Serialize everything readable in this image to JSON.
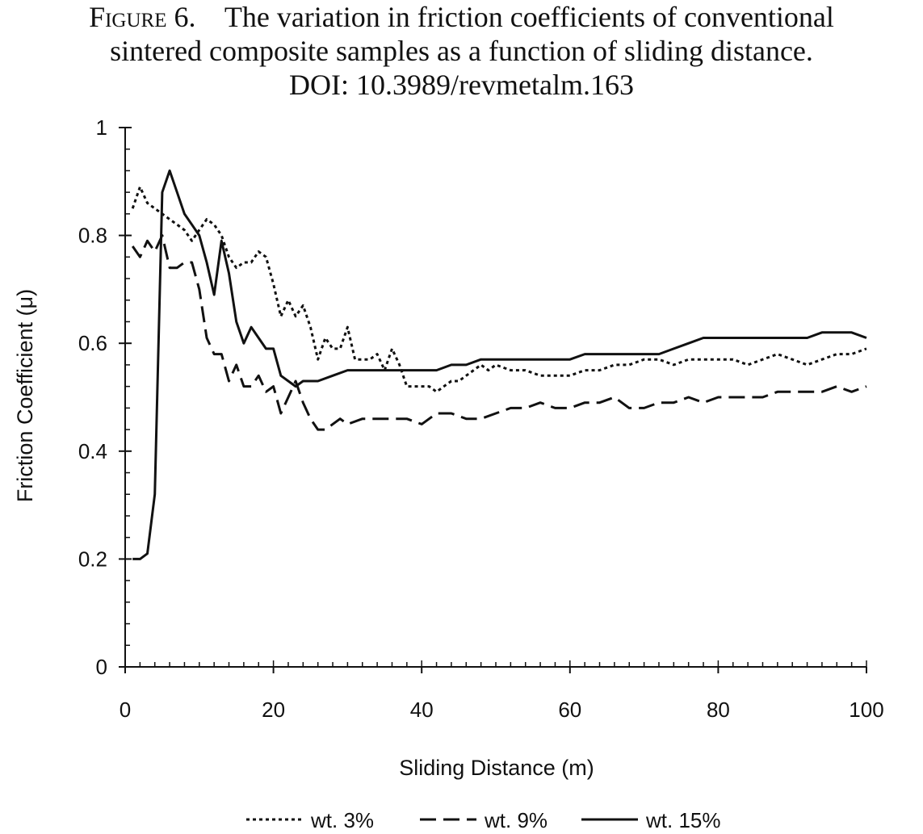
{
  "caption": {
    "figure_label": "Figure 6.",
    "line1": "The variation in friction coefficients of conventional",
    "line2": "sintered composite samples as a function of sliding distance.",
    "line3": "DOI: 10.3989/revmetalm.163"
  },
  "chart_data": {
    "type": "line",
    "title": "",
    "xlabel": "Sliding Distance (m)",
    "ylabel": "Friction Coefficient (μ)",
    "xlim": [
      0,
      100
    ],
    "ylim": [
      0,
      1
    ],
    "xticks": [
      0,
      20,
      40,
      60,
      80,
      100
    ],
    "yticks": [
      0,
      0.2,
      0.4,
      0.6,
      0.8,
      1
    ],
    "ytick_labels": [
      "0",
      "0.2",
      "0.4",
      "0.6",
      "0.8",
      "1"
    ],
    "x_minor_step": 2,
    "y_minor_step": 0.04,
    "grid": false,
    "legend_position": "bottom",
    "line_color": "#111111",
    "series": [
      {
        "name": "wt. 3%",
        "style": "dotted",
        "points": [
          [
            1,
            0.85
          ],
          [
            2,
            0.89
          ],
          [
            3,
            0.86
          ],
          [
            4,
            0.85
          ],
          [
            5,
            0.84
          ],
          [
            6,
            0.83
          ],
          [
            7,
            0.82
          ],
          [
            8,
            0.81
          ],
          [
            9,
            0.79
          ],
          [
            10,
            0.81
          ],
          [
            11,
            0.83
          ],
          [
            12,
            0.82
          ],
          [
            13,
            0.8
          ],
          [
            14,
            0.76
          ],
          [
            15,
            0.74
          ],
          [
            16,
            0.75
          ],
          [
            17,
            0.75
          ],
          [
            18,
            0.77
          ],
          [
            19,
            0.76
          ],
          [
            20,
            0.71
          ],
          [
            21,
            0.65
          ],
          [
            22,
            0.68
          ],
          [
            23,
            0.65
          ],
          [
            24,
            0.67
          ],
          [
            25,
            0.63
          ],
          [
            26,
            0.57
          ],
          [
            27,
            0.61
          ],
          [
            28,
            0.59
          ],
          [
            29,
            0.59
          ],
          [
            30,
            0.63
          ],
          [
            31,
            0.57
          ],
          [
            32,
            0.57
          ],
          [
            33,
            0.57
          ],
          [
            34,
            0.58
          ],
          [
            35,
            0.55
          ],
          [
            36,
            0.59
          ],
          [
            37,
            0.56
          ],
          [
            38,
            0.52
          ],
          [
            39,
            0.52
          ],
          [
            40,
            0.52
          ],
          [
            41,
            0.52
          ],
          [
            42,
            0.51
          ],
          [
            43,
            0.52
          ],
          [
            44,
            0.53
          ],
          [
            45,
            0.53
          ],
          [
            46,
            0.54
          ],
          [
            47,
            0.55
          ],
          [
            48,
            0.56
          ],
          [
            49,
            0.55
          ],
          [
            50,
            0.56
          ],
          [
            52,
            0.55
          ],
          [
            54,
            0.55
          ],
          [
            56,
            0.54
          ],
          [
            58,
            0.54
          ],
          [
            60,
            0.54
          ],
          [
            62,
            0.55
          ],
          [
            64,
            0.55
          ],
          [
            66,
            0.56
          ],
          [
            68,
            0.56
          ],
          [
            70,
            0.57
          ],
          [
            72,
            0.57
          ],
          [
            74,
            0.56
          ],
          [
            76,
            0.57
          ],
          [
            78,
            0.57
          ],
          [
            80,
            0.57
          ],
          [
            82,
            0.57
          ],
          [
            84,
            0.56
          ],
          [
            86,
            0.57
          ],
          [
            88,
            0.58
          ],
          [
            90,
            0.57
          ],
          [
            92,
            0.56
          ],
          [
            94,
            0.57
          ],
          [
            96,
            0.58
          ],
          [
            98,
            0.58
          ],
          [
            100,
            0.59
          ]
        ]
      },
      {
        "name": "wt. 9%",
        "style": "dashed",
        "points": [
          [
            1,
            0.78
          ],
          [
            2,
            0.76
          ],
          [
            3,
            0.79
          ],
          [
            4,
            0.77
          ],
          [
            5,
            0.8
          ],
          [
            6,
            0.74
          ],
          [
            7,
            0.74
          ],
          [
            8,
            0.75
          ],
          [
            9,
            0.75
          ],
          [
            10,
            0.7
          ],
          [
            11,
            0.61
          ],
          [
            12,
            0.58
          ],
          [
            13,
            0.58
          ],
          [
            14,
            0.53
          ],
          [
            15,
            0.56
          ],
          [
            16,
            0.52
          ],
          [
            17,
            0.52
          ],
          [
            18,
            0.54
          ],
          [
            19,
            0.51
          ],
          [
            20,
            0.52
          ],
          [
            21,
            0.47
          ],
          [
            22,
            0.5
          ],
          [
            23,
            0.53
          ],
          [
            24,
            0.49
          ],
          [
            25,
            0.46
          ],
          [
            26,
            0.44
          ],
          [
            27,
            0.44
          ],
          [
            28,
            0.45
          ],
          [
            29,
            0.46
          ],
          [
            30,
            0.45
          ],
          [
            32,
            0.46
          ],
          [
            34,
            0.46
          ],
          [
            36,
            0.46
          ],
          [
            38,
            0.46
          ],
          [
            40,
            0.45
          ],
          [
            42,
            0.47
          ],
          [
            44,
            0.47
          ],
          [
            46,
            0.46
          ],
          [
            48,
            0.46
          ],
          [
            50,
            0.47
          ],
          [
            52,
            0.48
          ],
          [
            54,
            0.48
          ],
          [
            56,
            0.49
          ],
          [
            58,
            0.48
          ],
          [
            60,
            0.48
          ],
          [
            62,
            0.49
          ],
          [
            64,
            0.49
          ],
          [
            66,
            0.5
          ],
          [
            68,
            0.48
          ],
          [
            70,
            0.48
          ],
          [
            72,
            0.49
          ],
          [
            74,
            0.49
          ],
          [
            76,
            0.5
          ],
          [
            78,
            0.49
          ],
          [
            80,
            0.5
          ],
          [
            82,
            0.5
          ],
          [
            84,
            0.5
          ],
          [
            86,
            0.5
          ],
          [
            88,
            0.51
          ],
          [
            90,
            0.51
          ],
          [
            92,
            0.51
          ],
          [
            94,
            0.51
          ],
          [
            96,
            0.52
          ],
          [
            98,
            0.51
          ],
          [
            100,
            0.52
          ]
        ]
      },
      {
        "name": "wt. 15%",
        "style": "solid",
        "points": [
          [
            1,
            0.2
          ],
          [
            2,
            0.2
          ],
          [
            3,
            0.21
          ],
          [
            4,
            0.32
          ],
          [
            5,
            0.88
          ],
          [
            6,
            0.92
          ],
          [
            7,
            0.88
          ],
          [
            8,
            0.84
          ],
          [
            9,
            0.82
          ],
          [
            10,
            0.8
          ],
          [
            11,
            0.75
          ],
          [
            12,
            0.69
          ],
          [
            13,
            0.79
          ],
          [
            14,
            0.73
          ],
          [
            15,
            0.64
          ],
          [
            16,
            0.6
          ],
          [
            17,
            0.63
          ],
          [
            18,
            0.61
          ],
          [
            19,
            0.59
          ],
          [
            20,
            0.59
          ],
          [
            21,
            0.54
          ],
          [
            22,
            0.53
          ],
          [
            23,
            0.52
          ],
          [
            24,
            0.53
          ],
          [
            25,
            0.53
          ],
          [
            26,
            0.53
          ],
          [
            28,
            0.54
          ],
          [
            30,
            0.55
          ],
          [
            32,
            0.55
          ],
          [
            34,
            0.55
          ],
          [
            36,
            0.55
          ],
          [
            38,
            0.55
          ],
          [
            40,
            0.55
          ],
          [
            42,
            0.55
          ],
          [
            44,
            0.56
          ],
          [
            46,
            0.56
          ],
          [
            48,
            0.57
          ],
          [
            50,
            0.57
          ],
          [
            52,
            0.57
          ],
          [
            54,
            0.57
          ],
          [
            56,
            0.57
          ],
          [
            58,
            0.57
          ],
          [
            60,
            0.57
          ],
          [
            62,
            0.58
          ],
          [
            64,
            0.58
          ],
          [
            66,
            0.58
          ],
          [
            68,
            0.58
          ],
          [
            70,
            0.58
          ],
          [
            72,
            0.58
          ],
          [
            74,
            0.59
          ],
          [
            76,
            0.6
          ],
          [
            78,
            0.61
          ],
          [
            80,
            0.61
          ],
          [
            82,
            0.61
          ],
          [
            84,
            0.61
          ],
          [
            86,
            0.61
          ],
          [
            88,
            0.61
          ],
          [
            90,
            0.61
          ],
          [
            92,
            0.61
          ],
          [
            94,
            0.62
          ],
          [
            96,
            0.62
          ],
          [
            98,
            0.62
          ],
          [
            100,
            0.61
          ]
        ]
      }
    ]
  }
}
